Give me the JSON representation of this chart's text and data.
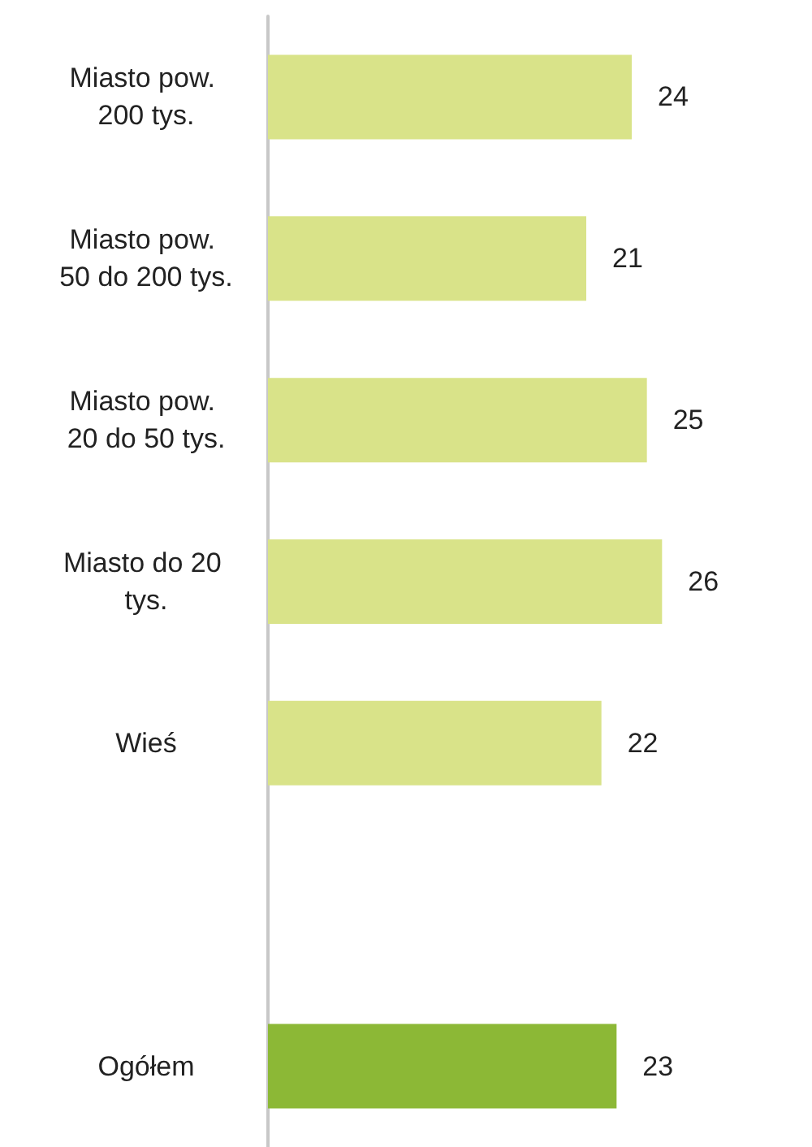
{
  "chart_data": {
    "type": "bar",
    "orientation": "horizontal",
    "categories": [
      "Miasto pow. 200 tys.",
      "Miasto pow. 50 do 200 tys.",
      "Miasto pow. 20 do 50 tys.",
      "Miasto do 20 tys.",
      "Wieś",
      null,
      "Ogółem"
    ],
    "values": [
      24,
      21,
      25,
      26,
      22,
      null,
      23
    ],
    "colors": [
      "#d9e389",
      "#d9e389",
      "#d9e389",
      "#d9e389",
      "#d9e389",
      null,
      "#8cb836"
    ],
    "data_labels": true
  }
}
